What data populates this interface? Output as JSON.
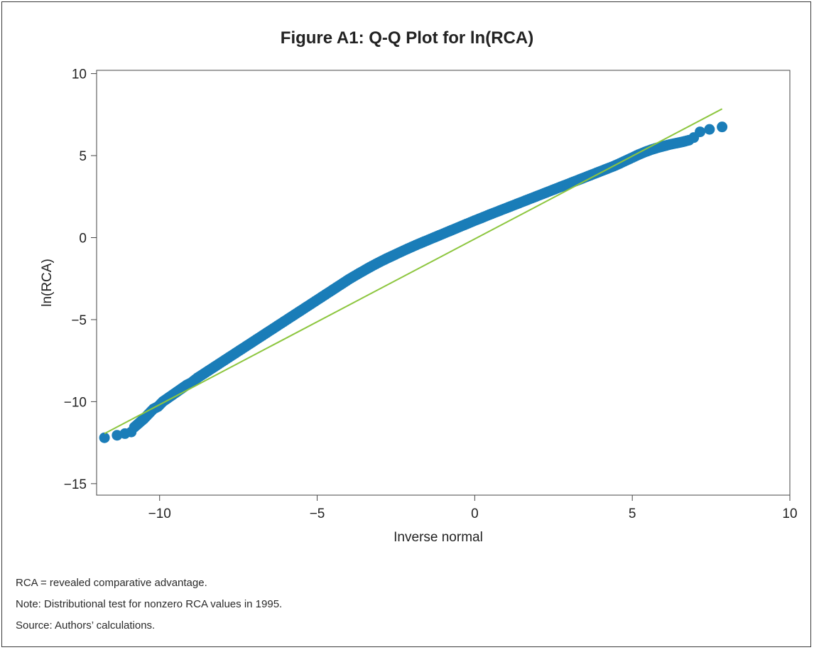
{
  "chart_data": {
    "type": "scatter",
    "title": "Figure A1: Q-Q Plot for ln(RCA)",
    "xlabel": "Inverse normal",
    "ylabel": "ln(RCA)",
    "xlim": [
      -12,
      10
    ],
    "ylim": [
      -15.7,
      10.2
    ],
    "xticks": [
      -10,
      -5,
      0,
      5,
      10
    ],
    "xtick_labels": [
      "−10",
      "−5",
      "0",
      "5",
      "10"
    ],
    "yticks": [
      -15,
      -10,
      -5,
      0,
      5,
      10
    ],
    "ytick_labels": [
      "−15",
      "−10",
      "−5",
      "0",
      "5",
      "10"
    ],
    "grid": false,
    "series": [
      {
        "kind": "points",
        "color": "#1a7db8",
        "x": [
          -11.75,
          -11.35,
          -11.1,
          -10.9,
          -10.8,
          -10.65,
          -10.5,
          -10.35,
          -10.2,
          -10.05,
          -9.9,
          -9.75,
          -9.6,
          -9.45,
          -9.3,
          -9.15,
          -9.0,
          -8.8,
          -8.6,
          -8.4,
          -8.2,
          -8.0,
          -7.8,
          -7.6,
          -7.4,
          -7.2,
          -7.0,
          -6.8,
          -6.6,
          -6.4,
          -6.2,
          -6.0,
          -5.8,
          -5.6,
          -5.4,
          -5.2,
          -5.0,
          -4.8,
          -4.6,
          -4.4,
          -4.2,
          -4.0,
          -3.8,
          -3.6,
          -3.4,
          -3.2,
          -3.0,
          -2.8,
          -2.6,
          -2.4,
          -2.2,
          -2.0,
          -1.8,
          -1.6,
          -1.4,
          -1.2,
          -1.0,
          -0.8,
          -0.6,
          -0.4,
          -0.2,
          0.0,
          0.2,
          0.4,
          0.6,
          0.8,
          1.0,
          1.2,
          1.4,
          1.6,
          1.8,
          2.0,
          2.2,
          2.4,
          2.6,
          2.8,
          3.0,
          3.2,
          3.4,
          3.6,
          3.8,
          4.0,
          4.2,
          4.4,
          4.6,
          4.8,
          5.0,
          5.2,
          5.4,
          5.6,
          5.8,
          6.0,
          6.2,
          6.4,
          6.6,
          6.8,
          6.95,
          7.15,
          7.45,
          7.85
        ],
        "y": [
          -12.2,
          -12.05,
          -11.95,
          -11.85,
          -11.55,
          -11.3,
          -11.05,
          -10.75,
          -10.45,
          -10.3,
          -10.0,
          -9.8,
          -9.6,
          -9.4,
          -9.2,
          -9.0,
          -8.85,
          -8.55,
          -8.3,
          -8.05,
          -7.8,
          -7.55,
          -7.3,
          -7.05,
          -6.8,
          -6.55,
          -6.3,
          -6.05,
          -5.8,
          -5.55,
          -5.3,
          -5.05,
          -4.8,
          -4.55,
          -4.3,
          -4.05,
          -3.8,
          -3.55,
          -3.3,
          -3.05,
          -2.8,
          -2.55,
          -2.32,
          -2.1,
          -1.88,
          -1.67,
          -1.47,
          -1.28,
          -1.1,
          -0.92,
          -0.74,
          -0.57,
          -0.4,
          -0.24,
          -0.08,
          0.08,
          0.24,
          0.4,
          0.56,
          0.72,
          0.88,
          1.04,
          1.19,
          1.35,
          1.5,
          1.65,
          1.8,
          1.95,
          2.1,
          2.25,
          2.4,
          2.55,
          2.7,
          2.85,
          3.0,
          3.15,
          3.3,
          3.45,
          3.6,
          3.75,
          3.9,
          4.05,
          4.2,
          4.35,
          4.52,
          4.7,
          4.88,
          5.06,
          5.22,
          5.36,
          5.48,
          5.58,
          5.68,
          5.76,
          5.84,
          5.94,
          6.1,
          6.45,
          6.6,
          6.75
        ]
      },
      {
        "kind": "reference-line",
        "color": "#8dc63f",
        "x": [
          -11.75,
          7.85
        ],
        "y": [
          -11.95,
          7.85
        ]
      }
    ]
  },
  "notes": {
    "line1": "RCA = revealed comparative advantage.",
    "line2": "Note: Distributional test for nonzero RCA values in 1995.",
    "line3": "Source: Authors’ calculations."
  }
}
